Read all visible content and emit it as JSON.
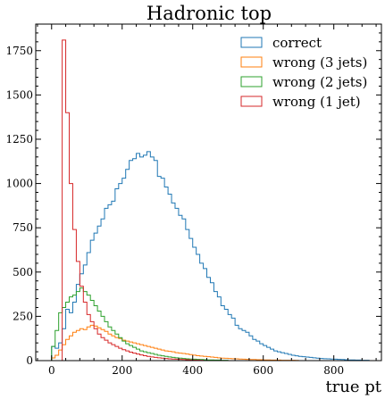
{
  "chart_data": {
    "type": "histogram",
    "title": "Hadronic top",
    "xlabel": "true pt",
    "ylabel": "",
    "xlim": [
      -45,
      935
    ],
    "ylim": [
      0,
      1900
    ],
    "x_ticks": [
      0,
      200,
      400,
      600,
      800
    ],
    "y_ticks": [
      0,
      250,
      500,
      750,
      1000,
      1250,
      1500,
      1750
    ],
    "bin_width": 10,
    "legend_position": "top-right",
    "series": [
      {
        "name": "correct",
        "color": "#1f77b4",
        "start": 0,
        "values": [
          80,
          70,
          100,
          180,
          290,
          270,
          330,
          430,
          490,
          540,
          610,
          680,
          720,
          760,
          800,
          860,
          880,
          900,
          970,
          1000,
          1030,
          1080,
          1130,
          1140,
          1170,
          1150,
          1160,
          1180,
          1150,
          1130,
          1040,
          1030,
          980,
          940,
          890,
          860,
          820,
          800,
          740,
          690,
          640,
          600,
          550,
          520,
          470,
          440,
          390,
          360,
          310,
          290,
          260,
          240,
          200,
          180,
          170,
          160,
          140,
          120,
          110,
          95,
          85,
          75,
          65,
          55,
          50,
          45,
          40,
          35,
          30,
          27,
          24,
          22,
          20,
          18,
          16,
          14,
          12,
          11,
          10,
          9,
          8,
          7,
          6,
          5,
          4,
          4,
          3,
          3,
          2,
          2
        ]
      },
      {
        "name": "wrong (3 jets)",
        "color": "#ff7f0e",
        "start": 0,
        "values": [
          15,
          30,
          60,
          90,
          120,
          140,
          160,
          170,
          180,
          175,
          190,
          200,
          195,
          185,
          175,
          165,
          150,
          140,
          130,
          125,
          115,
          110,
          105,
          100,
          95,
          90,
          85,
          80,
          75,
          70,
          65,
          60,
          55,
          52,
          50,
          45,
          42,
          40,
          37,
          34,
          31,
          28,
          26,
          24,
          22,
          20,
          18,
          16,
          14,
          13,
          12,
          11,
          10,
          9,
          8,
          7,
          6,
          6,
          5,
          5,
          4,
          4,
          3,
          3,
          3,
          2,
          2,
          2,
          2,
          1
        ]
      },
      {
        "name": "wrong (2 jets)",
        "color": "#2ca02c",
        "start": 0,
        "values": [
          80,
          170,
          270,
          300,
          330,
          360,
          370,
          390,
          410,
          390,
          370,
          340,
          310,
          280,
          250,
          220,
          190,
          170,
          150,
          130,
          110,
          95,
          85,
          75,
          65,
          55,
          50,
          45,
          40,
          35,
          30,
          27,
          24,
          21,
          18,
          16,
          14,
          12,
          10,
          9,
          8,
          7,
          6,
          5,
          4,
          4,
          3,
          3,
          2,
          2
        ]
      },
      {
        "name": "wrong (1 jet)",
        "color": "#d62728",
        "start": 30,
        "values": [
          1810,
          1400,
          1000,
          740,
          560,
          420,
          330,
          260,
          220,
          180,
          150,
          130,
          115,
          100,
          90,
          80,
          70,
          62,
          55,
          48,
          42,
          37,
          32,
          28,
          24,
          21,
          18,
          16,
          14,
          12,
          10,
          9,
          8,
          7,
          6,
          5,
          4,
          3,
          3,
          2
        ]
      }
    ]
  }
}
